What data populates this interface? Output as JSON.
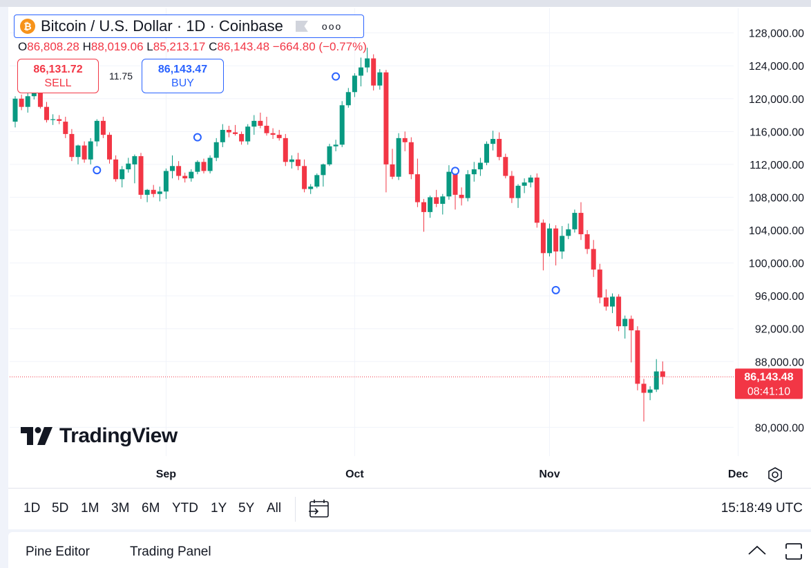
{
  "legend": {
    "logo_letter": "₿",
    "title": "Bitcoin / U.S. Dollar · 1D · Coinbase",
    "more": "ooo"
  },
  "ohlc": {
    "o_label": "O",
    "o_value": "86,808.28",
    "h_label": "H",
    "h_value": "88,019.06",
    "l_label": "L",
    "l_value": "85,213.17",
    "c_label": "C",
    "c_value": "86,143.48",
    "change": "−664.80 (−0.77%)"
  },
  "trade": {
    "sell_price": "86,131.72",
    "sell_label": "SELL",
    "spread": "11.75",
    "buy_price": "86,143.47",
    "buy_label": "BUY"
  },
  "price_tag": {
    "price": "86,143.48",
    "countdown": "08:41:10"
  },
  "branding": {
    "name": "TradingView"
  },
  "range_buttons": [
    "1D",
    "5D",
    "1M",
    "3M",
    "6M",
    "YTD",
    "1Y",
    "5Y",
    "All"
  ],
  "clock": "15:18:49 UTC",
  "bottom_tabs": {
    "pine": "Pine Editor",
    "trading": "Trading Panel"
  },
  "colors": {
    "up": "#089981",
    "down": "#f23645",
    "accent": "#2962ff",
    "grid": "#f0f3fa"
  },
  "chart_data": {
    "type": "candlestick",
    "title": "Bitcoin / U.S. Dollar · 1D · Coinbase",
    "ylim": [
      76500,
      131000
    ],
    "yticks": [
      {
        "value": 128000,
        "label": "128,000.00"
      },
      {
        "value": 124000,
        "label": "124,000.00"
      },
      {
        "value": 120000,
        "label": "120,000.00"
      },
      {
        "value": 116000,
        "label": "116,000.00"
      },
      {
        "value": 112000,
        "label": "112,000.00"
      },
      {
        "value": 108000,
        "label": "108,000.00"
      },
      {
        "value": 104000,
        "label": "104,000.00"
      },
      {
        "value": 100000,
        "label": "100,000.00"
      },
      {
        "value": 96000,
        "label": "96,000.00"
      },
      {
        "value": 92000,
        "label": "92,000.00"
      },
      {
        "value": 88000,
        "label": "88,000.00"
      },
      {
        "value": 80000,
        "label": "80,000.00"
      }
    ],
    "xticks": [
      {
        "index": 24,
        "label": "Sep"
      },
      {
        "index": 54,
        "label": "Oct"
      },
      {
        "index": 85,
        "label": "Nov"
      },
      {
        "index": 115,
        "label": "Dec"
      }
    ],
    "last_price": 86143.48,
    "candles": [
      [
        117200,
        120300,
        116500,
        120000
      ],
      [
        120000,
        120500,
        118600,
        119000
      ],
      [
        119000,
        120800,
        118300,
        120300
      ],
      [
        120300,
        121700,
        119900,
        121500
      ],
      [
        121500,
        122100,
        118800,
        119000
      ],
      [
        119000,
        119600,
        117100,
        117400
      ],
      [
        117400,
        118100,
        116800,
        117500
      ],
      [
        117500,
        118000,
        116900,
        117300
      ],
      [
        117200,
        117800,
        115200,
        115700
      ],
      [
        115700,
        116300,
        112400,
        112900
      ],
      [
        112900,
        114400,
        112000,
        114300
      ],
      [
        114300,
        114800,
        112200,
        112600
      ],
      [
        112600,
        115200,
        112000,
        114800
      ],
      [
        114800,
        117500,
        114200,
        117300
      ],
      [
        117300,
        117800,
        115200,
        115600
      ],
      [
        115600,
        115900,
        112100,
        112600
      ],
      [
        112600,
        113100,
        109900,
        110200
      ],
      [
        110200,
        111800,
        109200,
        111400
      ],
      [
        111400,
        112800,
        111000,
        112100
      ],
      [
        112000,
        113200,
        109700,
        113000
      ],
      [
        113000,
        113400,
        107800,
        108300
      ],
      [
        108300,
        109000,
        107400,
        108900
      ],
      [
        108900,
        109500,
        108000,
        108400
      ],
      [
        108400,
        109300,
        107500,
        108700
      ],
      [
        108700,
        111500,
        107800,
        111200
      ],
      [
        111200,
        113100,
        110300,
        111800
      ],
      [
        111800,
        112400,
        110100,
        110600
      ],
      [
        110600,
        111000,
        109800,
        110300
      ],
      [
        110300,
        111400,
        109900,
        111100
      ],
      [
        111100,
        112500,
        110800,
        112300
      ],
      [
        112300,
        112700,
        110900,
        111200
      ],
      [
        111200,
        113100,
        110900,
        112800
      ],
      [
        112800,
        115200,
        112400,
        114700
      ],
      [
        114700,
        116900,
        114100,
        116200
      ],
      [
        116200,
        116700,
        115300,
        115900
      ],
      [
        115900,
        116800,
        115500,
        115700
      ],
      [
        115700,
        116000,
        114400,
        114800
      ],
      [
        114800,
        116900,
        114400,
        116600
      ],
      [
        116600,
        118000,
        115600,
        117300
      ],
      [
        117300,
        118300,
        116400,
        116700
      ],
      [
        116700,
        117800,
        115500,
        115800
      ],
      [
        115800,
        116400,
        115100,
        115600
      ],
      [
        115600,
        116200,
        114900,
        115200
      ],
      [
        115200,
        115700,
        111800,
        112300
      ],
      [
        112300,
        113100,
        111500,
        112600
      ],
      [
        112600,
        113400,
        111300,
        111800
      ],
      [
        111800,
        112600,
        108600,
        109000
      ],
      [
        109000,
        109600,
        108400,
        109300
      ],
      [
        109300,
        110900,
        109100,
        110700
      ],
      [
        110700,
        112100,
        109300,
        112000
      ],
      [
        112000,
        114500,
        111800,
        114200
      ],
      [
        114200,
        115000,
        113600,
        114400
      ],
      [
        114400,
        119700,
        114100,
        119200
      ],
      [
        119200,
        121300,
        118900,
        120800
      ],
      [
        120800,
        123100,
        120200,
        122800
      ],
      [
        122800,
        125000,
        121500,
        123800
      ],
      [
        123800,
        126200,
        123200,
        124900
      ],
      [
        124900,
        125400,
        121000,
        121600
      ],
      [
        121600,
        123600,
        121100,
        123200
      ],
      [
        123200,
        123500,
        108600,
        112000
      ],
      [
        112000,
        113900,
        110200,
        110500
      ],
      [
        110500,
        115800,
        110100,
        115200
      ],
      [
        115200,
        116000,
        113600,
        114700
      ],
      [
        114700,
        115300,
        110200,
        110800
      ],
      [
        110800,
        112700,
        106800,
        107400
      ],
      [
        107400,
        107800,
        103800,
        106200
      ],
      [
        106200,
        108200,
        105500,
        108000
      ],
      [
        108000,
        108900,
        106800,
        107200
      ],
      [
        107200,
        108400,
        105900,
        108100
      ],
      [
        108100,
        111900,
        107700,
        111100
      ],
      [
        111100,
        111500,
        106500,
        108300
      ],
      [
        108300,
        109200,
        107000,
        107900
      ],
      [
        107900,
        111300,
        107500,
        110800
      ],
      [
        110800,
        112300,
        109900,
        111400
      ],
      [
        111400,
        112800,
        110600,
        112200
      ],
      [
        112200,
        114800,
        111900,
        114500
      ],
      [
        114500,
        116100,
        113700,
        115100
      ],
      [
        115100,
        115900,
        112500,
        112900
      ],
      [
        112900,
        113300,
        110300,
        110600
      ],
      [
        110600,
        111200,
        107300,
        107900
      ],
      [
        107900,
        109600,
        106700,
        109400
      ],
      [
        109400,
        110300,
        108500,
        109800
      ],
      [
        109800,
        110700,
        109200,
        110400
      ],
      [
        110400,
        110900,
        104300,
        104900
      ],
      [
        104900,
        105300,
        99100,
        101200
      ],
      [
        101200,
        104800,
        100800,
        104200
      ],
      [
        104200,
        104600,
        99700,
        101400
      ],
      [
        101400,
        104500,
        100500,
        103300
      ],
      [
        103300,
        104800,
        102900,
        104100
      ],
      [
        104100,
        106500,
        103700,
        106100
      ],
      [
        106100,
        107400,
        102800,
        103500
      ],
      [
        103500,
        104000,
        101100,
        101700
      ],
      [
        101700,
        102800,
        98300,
        99200
      ],
      [
        99200,
        99900,
        95100,
        95800
      ],
      [
        95800,
        96800,
        94200,
        94700
      ],
      [
        94700,
        96300,
        93900,
        95900
      ],
      [
        95900,
        96200,
        91700,
        92300
      ],
      [
        92300,
        93600,
        90800,
        93200
      ],
      [
        93200,
        93600,
        87900,
        91800
      ],
      [
        91800,
        92300,
        84500,
        85300
      ],
      [
        85300,
        85900,
        80700,
        84200
      ],
      [
        84200,
        85000,
        83300,
        84600
      ],
      [
        84600,
        88300,
        84300,
        86800
      ],
      [
        86808,
        88019,
        85213,
        86143
      ]
    ],
    "markers": [
      {
        "index": 13,
        "price": 111300
      },
      {
        "index": 29,
        "price": 115300
      },
      {
        "index": 51,
        "price": 122700
      },
      {
        "index": 70,
        "price": 111200
      },
      {
        "index": 86,
        "price": 96700
      }
    ]
  }
}
